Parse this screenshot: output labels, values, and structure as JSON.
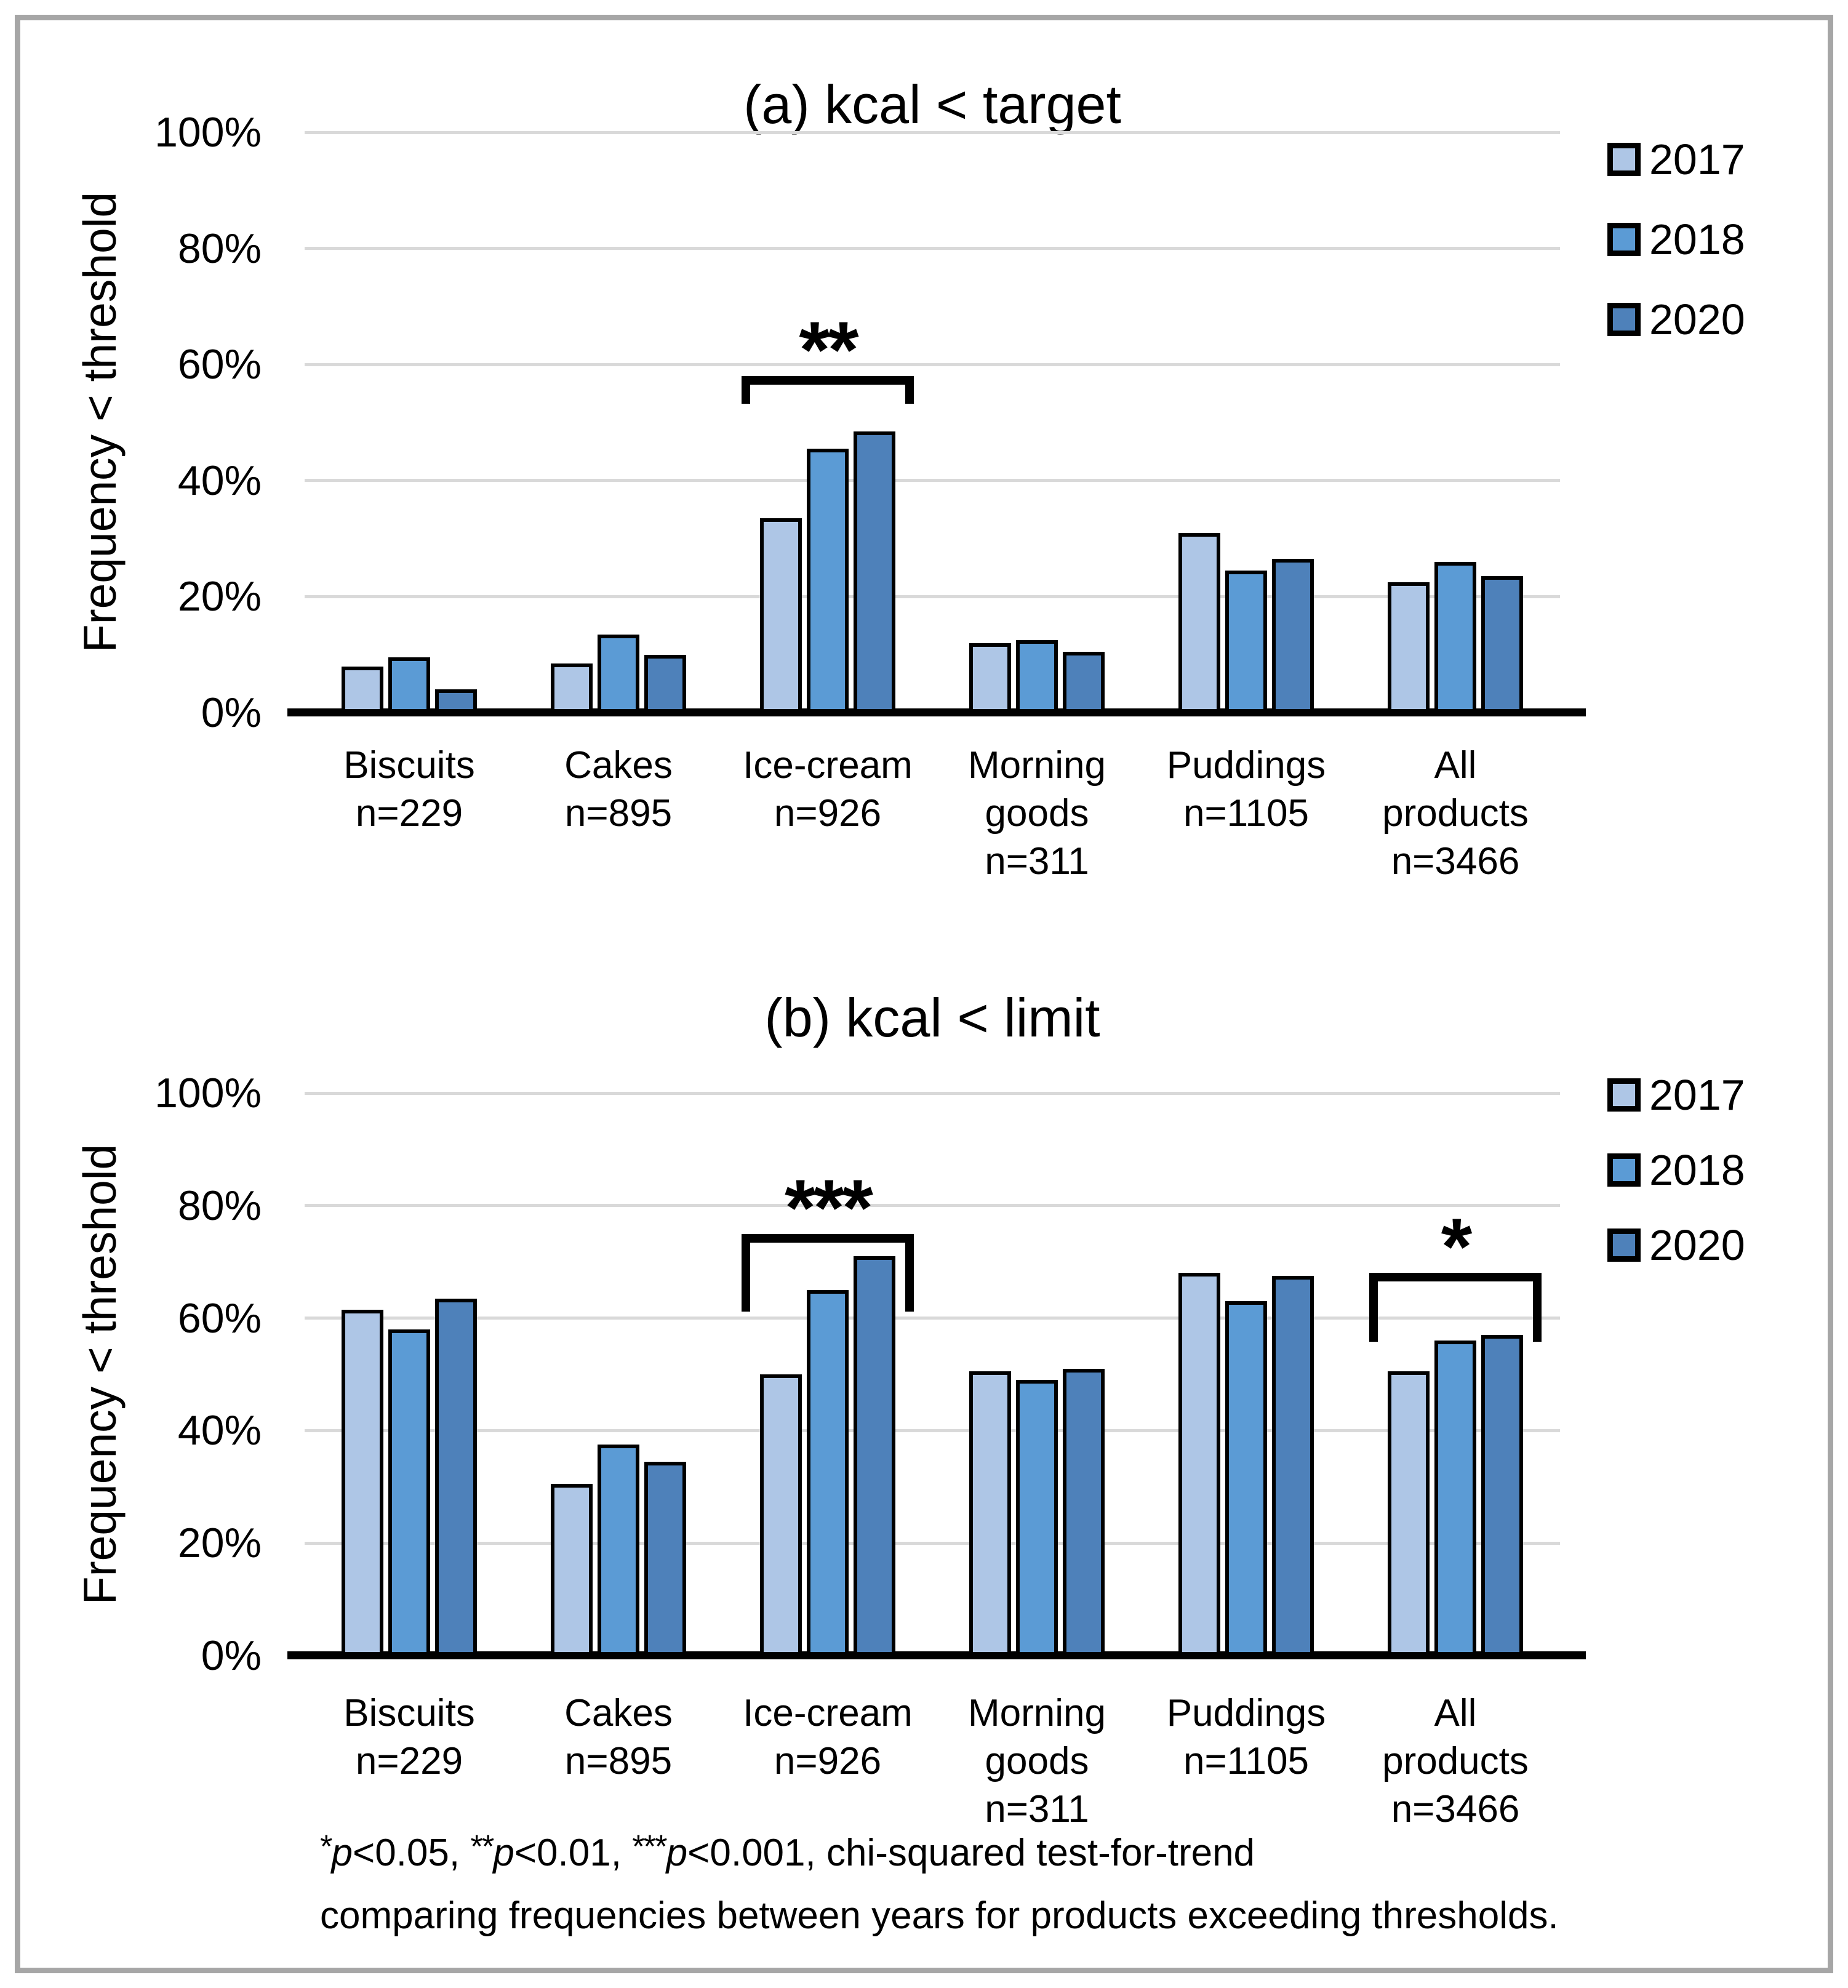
{
  "figure": {
    "border_color": "#A6A6A6",
    "footnote": {
      "line1_segments": [
        {
          "t": "*",
          "sup": true
        },
        {
          "t": "p",
          "italic": true
        },
        {
          "t": "<0.05, "
        },
        {
          "t": "**",
          "sup": true
        },
        {
          "t": "p",
          "italic": true
        },
        {
          "t": "<0.01, "
        },
        {
          "t": "***",
          "sup": true
        },
        {
          "t": "p",
          "italic": true
        },
        {
          "t": "<0.001, chi-squared test-for-trend"
        }
      ],
      "line2": "comparing frequencies between years for products exceeding thresholds."
    }
  },
  "chart_data": [
    {
      "type": "bar",
      "title": "(a) kcal < target",
      "ylabel": "Frequency < threshold",
      "ylim": [
        0,
        100
      ],
      "ytick_values": [
        0,
        20,
        40,
        60,
        80,
        100
      ],
      "ytick_labels": [
        "0%",
        "20%",
        "40%",
        "60%",
        "80%",
        "100%"
      ],
      "grid": true,
      "legend_position": "right",
      "legend_entries": [
        "2017",
        "2018",
        "2020"
      ],
      "categories": [
        {
          "slug": "biscuits",
          "lines": [
            "Biscuits",
            "n=229"
          ]
        },
        {
          "slug": "cakes",
          "lines": [
            "Cakes",
            "n=895"
          ]
        },
        {
          "slug": "ice-cream",
          "lines": [
            "Ice-cream",
            "n=926"
          ]
        },
        {
          "slug": "morning-goods",
          "lines": [
            "Morning",
            "goods",
            "n=311"
          ]
        },
        {
          "slug": "puddings",
          "lines": [
            "Puddings",
            "n=1105"
          ]
        },
        {
          "slug": "all-products",
          "lines": [
            "All",
            "products",
            "n=3466"
          ]
        }
      ],
      "series": [
        {
          "name": "2017",
          "color": "#AEC6E6",
          "values": [
            8,
            8.5,
            33.5,
            12,
            31,
            22.5
          ]
        },
        {
          "name": "2018",
          "color": "#5B9BD5",
          "values": [
            9.5,
            13.5,
            45.5,
            12.5,
            24.5,
            26
          ]
        },
        {
          "name": "2020",
          "color": "#4E81BA",
          "values": [
            4,
            10,
            48.5,
            10.5,
            26.5,
            23.5
          ]
        }
      ],
      "annotations": [
        {
          "label": "**",
          "category_index": 2,
          "bracket_y": 58,
          "bracket_drop": 4.8
        }
      ]
    },
    {
      "type": "bar",
      "title": "(b) kcal < limit",
      "ylabel": "Frequency < threshold",
      "ylim": [
        0,
        100
      ],
      "ytick_values": [
        0,
        20,
        40,
        60,
        80,
        100
      ],
      "ytick_labels": [
        "0%",
        "20%",
        "40%",
        "60%",
        "80%",
        "100%"
      ],
      "grid": true,
      "legend_position": "right",
      "legend_entries": [
        "2017",
        "2018",
        "2020"
      ],
      "categories": [
        {
          "slug": "biscuits",
          "lines": [
            "Biscuits",
            "n=229"
          ]
        },
        {
          "slug": "cakes",
          "lines": [
            "Cakes",
            "n=895"
          ]
        },
        {
          "slug": "ice-cream",
          "lines": [
            "Ice-cream",
            "n=926"
          ]
        },
        {
          "slug": "morning-goods",
          "lines": [
            "Morning",
            "goods",
            "n=311"
          ]
        },
        {
          "slug": "puddings",
          "lines": [
            "Puddings",
            "n=1105"
          ]
        },
        {
          "slug": "all-products",
          "lines": [
            "All",
            "products",
            "n=3466"
          ]
        }
      ],
      "series": [
        {
          "name": "2017",
          "color": "#AEC6E6",
          "values": [
            61.5,
            30.5,
            50,
            50.5,
            68,
            50.5
          ]
        },
        {
          "name": "2018",
          "color": "#5B9BD5",
          "values": [
            58,
            37.5,
            65,
            49,
            63,
            56
          ]
        },
        {
          "name": "2020",
          "color": "#4E81BA",
          "values": [
            63.5,
            34.5,
            71,
            51,
            67.5,
            57
          ]
        }
      ],
      "annotations": [
        {
          "label": "***",
          "category_index": 2,
          "bracket_y": 75,
          "bracket_drop": 13.8
        },
        {
          "label": "*",
          "category_index": 5,
          "bracket_y": 68,
          "bracket_drop": 12.2
        }
      ]
    }
  ]
}
